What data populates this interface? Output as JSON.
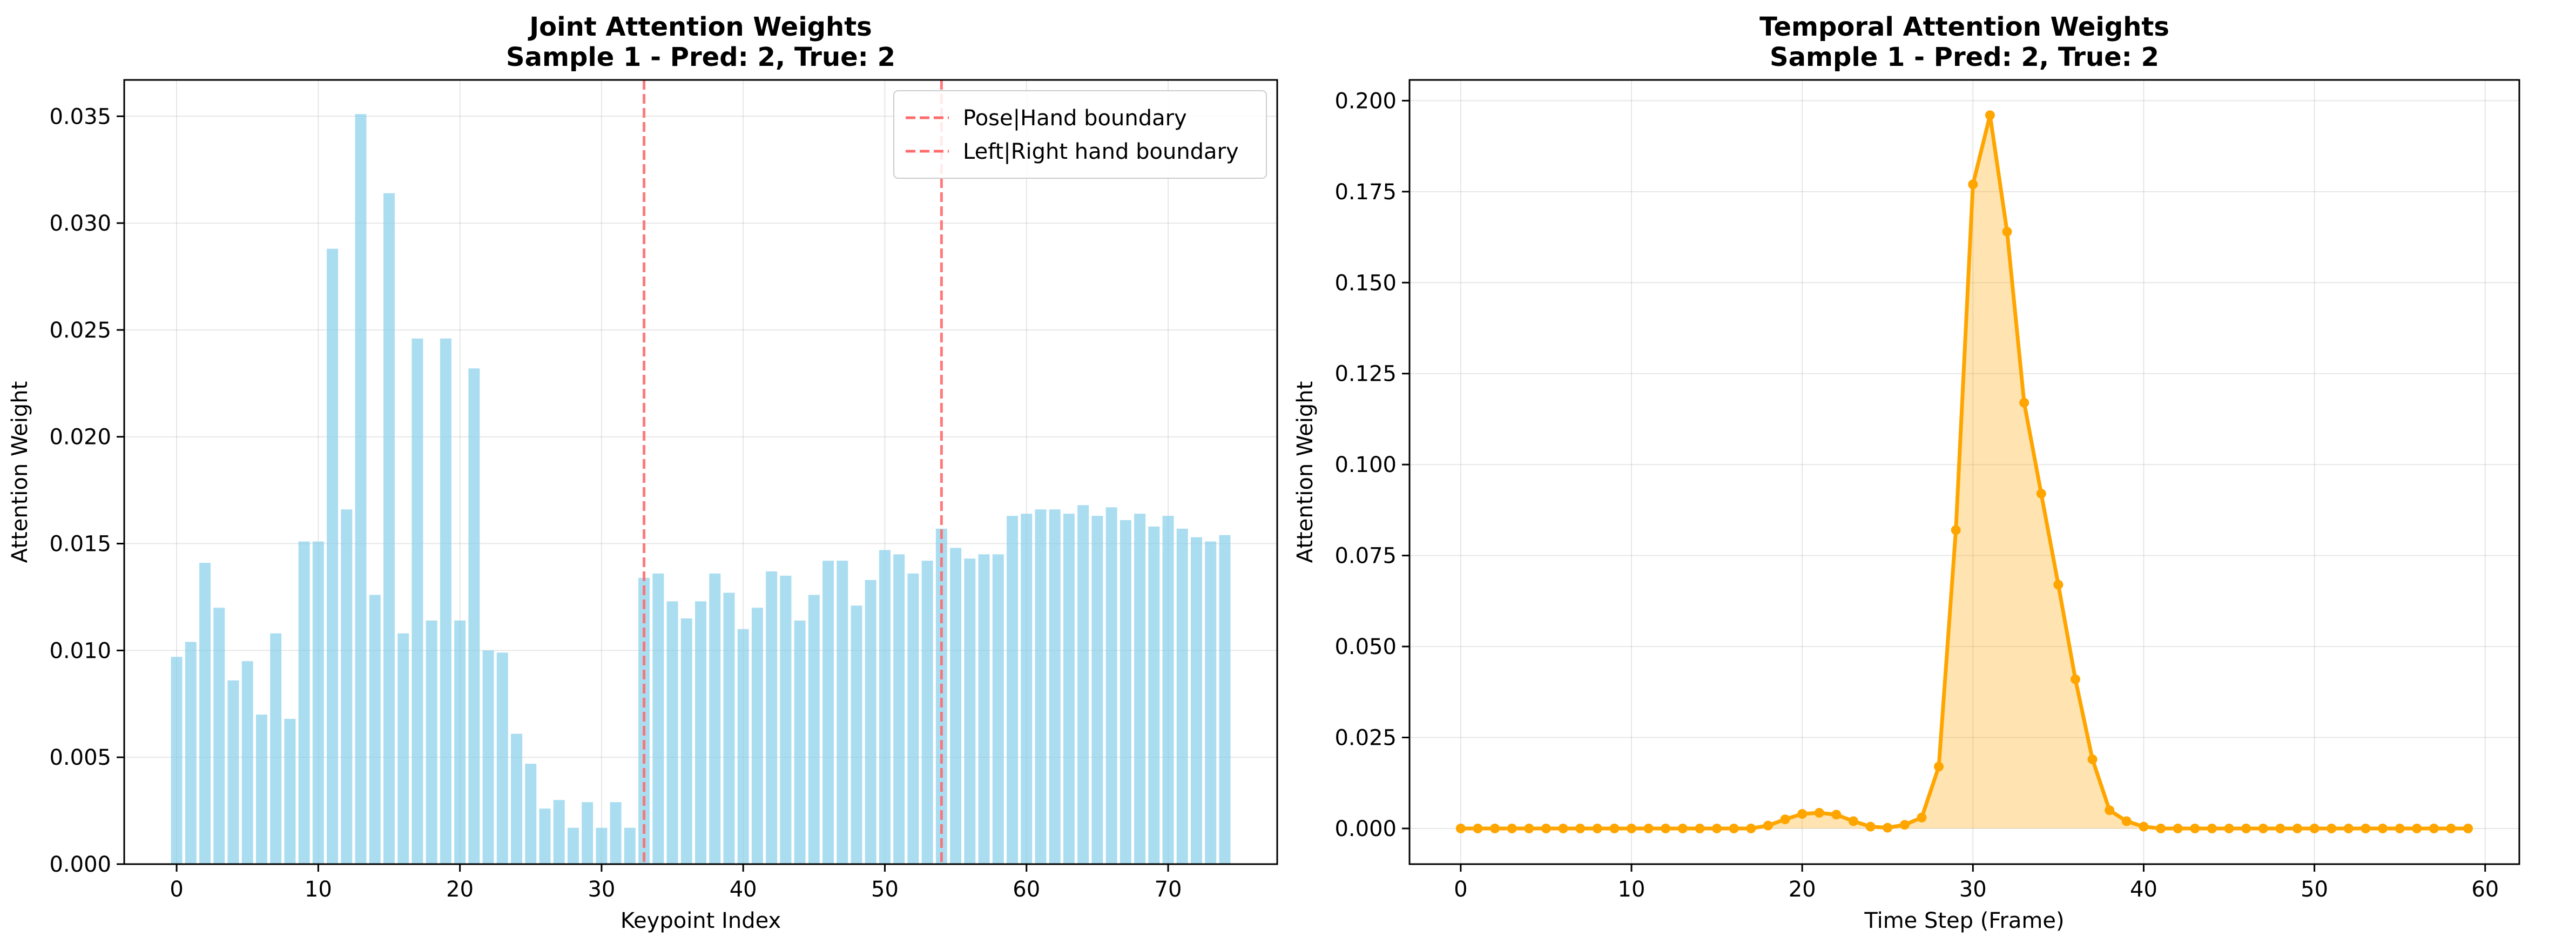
{
  "chart_data": [
    {
      "type": "bar",
      "title": [
        "Joint Attention Weights",
        "Sample 1 - Pred: 2, True: 2"
      ],
      "xlabel": "Keypoint Index",
      "ylabel": "Attention Weight",
      "xlim": [
        -3.7,
        77.7
      ],
      "ylim": [
        0,
        0.0367
      ],
      "xticks": [
        0,
        10,
        20,
        30,
        40,
        50,
        60,
        70
      ],
      "xtick_labels": [
        "0",
        "10",
        "20",
        "30",
        "40",
        "50",
        "60",
        "70"
      ],
      "yticks": [
        0,
        0.005,
        0.01,
        0.015,
        0.02,
        0.025,
        0.03,
        0.035
      ],
      "ytick_labels": [
        "0.000",
        "0.005",
        "0.010",
        "0.015",
        "0.020",
        "0.025",
        "0.030",
        "0.035"
      ],
      "grid": true,
      "bar_color": "#87CEEB",
      "x": [
        0,
        1,
        2,
        3,
        4,
        5,
        6,
        7,
        8,
        9,
        10,
        11,
        12,
        13,
        14,
        15,
        16,
        17,
        18,
        19,
        20,
        21,
        22,
        23,
        24,
        25,
        26,
        27,
        28,
        29,
        30,
        31,
        32,
        33,
        34,
        35,
        36,
        37,
        38,
        39,
        40,
        41,
        42,
        43,
        44,
        45,
        46,
        47,
        48,
        49,
        50,
        51,
        52,
        53,
        54,
        55,
        56,
        57,
        58,
        59,
        60,
        61,
        62,
        63,
        64,
        65,
        66,
        67,
        68,
        69,
        70,
        71,
        72,
        73,
        74
      ],
      "values": [
        0.0097,
        0.0104,
        0.0141,
        0.012,
        0.0086,
        0.0095,
        0.007,
        0.0108,
        0.0068,
        0.0151,
        0.0151,
        0.0288,
        0.0166,
        0.0351,
        0.0126,
        0.0314,
        0.0108,
        0.0246,
        0.0114,
        0.0246,
        0.0114,
        0.0232,
        0.01,
        0.0099,
        0.0061,
        0.0047,
        0.0026,
        0.003,
        0.0017,
        0.0029,
        0.0017,
        0.0029,
        0.0017,
        0.0134,
        0.0136,
        0.0123,
        0.0115,
        0.0123,
        0.0136,
        0.0127,
        0.011,
        0.012,
        0.0137,
        0.0135,
        0.0114,
        0.0126,
        0.0142,
        0.0142,
        0.0121,
        0.0133,
        0.0147,
        0.0145,
        0.0136,
        0.0142,
        0.0157,
        0.0148,
        0.0143,
        0.0145,
        0.0145,
        0.0163,
        0.0164,
        0.0166,
        0.0166,
        0.0164,
        0.0168,
        0.0163,
        0.0167,
        0.0161,
        0.0164,
        0.0158,
        0.0163,
        0.0157,
        0.0153,
        0.0151,
        0.0154
      ],
      "vlines": [
        {
          "x": 33,
          "label": "Pose|Hand boundary",
          "color": "#FF6B6B"
        },
        {
          "x": 54,
          "label": "Left|Right hand boundary",
          "color": "#FF6B6B"
        }
      ],
      "legend_position": "upper right"
    },
    {
      "type": "line",
      "title": [
        "Temporal Attention Weights",
        "Sample 1 - Pred: 2, True: 2"
      ],
      "xlabel": "Time Step (Frame)",
      "ylabel": "Attention Weight",
      "xlim": [
        -3,
        62
      ],
      "ylim": [
        -0.0098,
        0.2057
      ],
      "xticks": [
        0,
        10,
        20,
        30,
        40,
        50,
        60
      ],
      "xtick_labels": [
        "0",
        "10",
        "20",
        "30",
        "40",
        "50",
        "60"
      ],
      "yticks": [
        0,
        0.025,
        0.05,
        0.075,
        0.1,
        0.125,
        0.15,
        0.175,
        0.2
      ],
      "ytick_labels": [
        "0.000",
        "0.025",
        "0.050",
        "0.075",
        "0.100",
        "0.125",
        "0.150",
        "0.175",
        "0.200"
      ],
      "grid": true,
      "line_color": "#FFA500",
      "fill_color": "#FFA500",
      "fill_alpha": 0.3,
      "x": [
        0,
        1,
        2,
        3,
        4,
        5,
        6,
        7,
        8,
        9,
        10,
        11,
        12,
        13,
        14,
        15,
        16,
        17,
        18,
        19,
        20,
        21,
        22,
        23,
        24,
        25,
        26,
        27,
        28,
        29,
        30,
        31,
        32,
        33,
        34,
        35,
        36,
        37,
        38,
        39,
        40,
        41,
        42,
        43,
        44,
        45,
        46,
        47,
        48,
        49,
        50,
        51,
        52,
        53,
        54,
        55,
        56,
        57,
        58,
        59
      ],
      "values": [
        0,
        0,
        0,
        0,
        0,
        0,
        0,
        0,
        0,
        0,
        0,
        0,
        0,
        0,
        0,
        0,
        0,
        0,
        0.0008,
        0.0025,
        0.004,
        0.0043,
        0.0038,
        0.002,
        0.0005,
        0.0002,
        0.001,
        0.003,
        0.017,
        0.082,
        0.177,
        0.196,
        0.164,
        0.117,
        0.092,
        0.067,
        0.041,
        0.019,
        0.005,
        0.002,
        0.0005,
        0,
        0,
        0,
        0,
        0,
        0,
        0,
        0,
        0,
        0,
        0,
        0,
        0,
        0,
        0,
        0,
        0,
        0,
        0
      ]
    }
  ]
}
